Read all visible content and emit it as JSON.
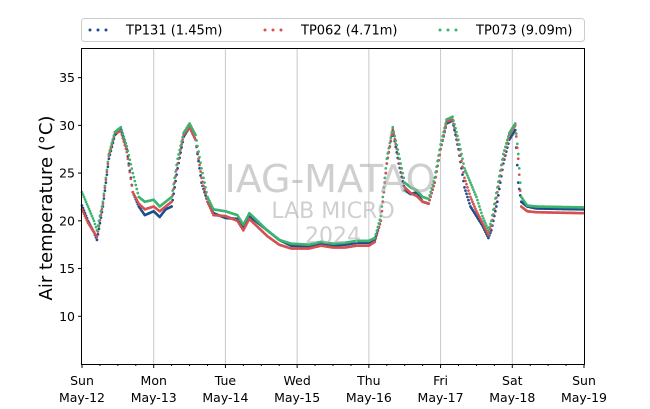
{
  "chart_data": {
    "type": "scatter",
    "ylabel": "Air temperature (°C)",
    "xlabel": "",
    "ylim": [
      5,
      38
    ],
    "yticks": [
      10,
      15,
      20,
      25,
      30,
      35
    ],
    "xlim": [
      "2024-05-12",
      "2024-05-19"
    ],
    "xticks": [
      {
        "day": "Sun",
        "date": "May-12"
      },
      {
        "day": "Mon",
        "date": "May-13"
      },
      {
        "day": "Tue",
        "date": "May-14"
      },
      {
        "day": "Wed",
        "date": "May-15"
      },
      {
        "day": "Thu",
        "date": "May-16"
      },
      {
        "day": "Fri",
        "date": "May-17"
      },
      {
        "day": "Sat",
        "date": "May-18"
      },
      {
        "day": "Sun",
        "date": "May-19"
      }
    ],
    "grid": "vertical",
    "legend_position": "top",
    "watermark": [
      "IAG-MATAO",
      "LAB MICRO",
      "2024"
    ],
    "series": [
      {
        "name": "TP131 (1.45m)",
        "color": "#1a4f8c",
        "points": [
          [
            "2024-05-12 00:00",
            21.6
          ],
          [
            "2024-05-12 02:00",
            20.0
          ],
          [
            "2024-05-12 04:00",
            18.8
          ],
          [
            "2024-05-12 05:00",
            18.0
          ],
          [
            "2024-05-12 07:00",
            21.5
          ],
          [
            "2024-05-12 09:00",
            26.5
          ],
          [
            "2024-05-12 11:00",
            29.0
          ],
          [
            "2024-05-12 13:00",
            29.6
          ],
          [
            "2024-05-12 15:00",
            27.5
          ],
          [
            "2024-05-12 17:00",
            23.0
          ],
          [
            "2024-05-12 19:00",
            21.5
          ],
          [
            "2024-05-12 21:00",
            20.6
          ],
          [
            "2024-05-13 00:00",
            21.0
          ],
          [
            "2024-05-13 02:00",
            20.4
          ],
          [
            "2024-05-13 04:00",
            21.2
          ],
          [
            "2024-05-13 06:00",
            21.5
          ],
          [
            "2024-05-13 08:00",
            25.5
          ],
          [
            "2024-05-13 10:00",
            28.8
          ],
          [
            "2024-05-13 12:00",
            29.8
          ],
          [
            "2024-05-13 14:00",
            28.5
          ],
          [
            "2024-05-13 16:00",
            24.0
          ],
          [
            "2024-05-13 18:00",
            22.0
          ],
          [
            "2024-05-13 20:00",
            20.8
          ],
          [
            "2024-05-14 00:00",
            20.3
          ],
          [
            "2024-05-14 04:00",
            20.2
          ],
          [
            "2024-05-14 06:00",
            19.3
          ],
          [
            "2024-05-14 08:00",
            20.5
          ],
          [
            "2024-05-14 10:00",
            20.0
          ],
          [
            "2024-05-14 14:00",
            19.0
          ],
          [
            "2024-05-14 18:00",
            18.0
          ],
          [
            "2024-05-14 22:00",
            17.4
          ],
          [
            "2024-05-15 04:00",
            17.3
          ],
          [
            "2024-05-15 08:00",
            17.6
          ],
          [
            "2024-05-15 12:00",
            17.4
          ],
          [
            "2024-05-15 16:00",
            17.5
          ],
          [
            "2024-05-15 20:00",
            17.7
          ],
          [
            "2024-05-16 00:00",
            17.7
          ],
          [
            "2024-05-16 02:00",
            18.0
          ],
          [
            "2024-05-16 04:00",
            20.0
          ],
          [
            "2024-05-16 06:00",
            26.0
          ],
          [
            "2024-05-16 08:00",
            29.5
          ],
          [
            "2024-05-16 10:00",
            26.0
          ],
          [
            "2024-05-16 12:00",
            23.2
          ],
          [
            "2024-05-16 14:00",
            22.8
          ],
          [
            "2024-05-16 16:00",
            23.0
          ],
          [
            "2024-05-16 18:00",
            22.0
          ],
          [
            "2024-05-16 20:00",
            21.8
          ],
          [
            "2024-05-16 22:00",
            24.0
          ],
          [
            "2024-05-17 00:00",
            27.5
          ],
          [
            "2024-05-17 02:00",
            30.2
          ],
          [
            "2024-05-17 04:00",
            30.5
          ],
          [
            "2024-05-17 06:00",
            27.5
          ],
          [
            "2024-05-17 08:00",
            23.5
          ],
          [
            "2024-05-17 10:00",
            21.5
          ],
          [
            "2024-05-17 12:00",
            20.5
          ],
          [
            "2024-05-17 14:00",
            19.5
          ],
          [
            "2024-05-17 16:00",
            18.2
          ],
          [
            "2024-05-17 17:00",
            19.0
          ],
          [
            "2024-05-17 19:00",
            22.0
          ],
          [
            "2024-05-17 21:00",
            26.0
          ],
          [
            "2024-05-17 23:00",
            28.5
          ],
          [
            "2024-05-18 01:00",
            29.5
          ],
          [
            "2024-05-18 02:00",
            24.0
          ],
          [
            "2024-05-18 03:00",
            22.0
          ],
          [
            "2024-05-18 05:00",
            21.5
          ],
          [
            "2024-05-18 08:00",
            21.3
          ],
          [
            "2024-05-19 00:00",
            21.2
          ]
        ]
      },
      {
        "name": "TP062 (4.71m)",
        "color": "#d6504f",
        "points": [
          [
            "2024-05-12 00:00",
            21.2
          ],
          [
            "2024-05-12 02:00",
            19.8
          ],
          [
            "2024-05-12 04:00",
            18.8
          ],
          [
            "2024-05-12 05:00",
            18.3
          ],
          [
            "2024-05-12 07:00",
            21.8
          ],
          [
            "2024-05-12 09:00",
            26.8
          ],
          [
            "2024-05-12 11:00",
            29.2
          ],
          [
            "2024-05-12 13:00",
            29.4
          ],
          [
            "2024-05-12 15:00",
            27.2
          ],
          [
            "2024-05-12 17:00",
            23.0
          ],
          [
            "2024-05-12 19:00",
            21.8
          ],
          [
            "2024-05-12 21:00",
            21.2
          ],
          [
            "2024-05-13 00:00",
            21.5
          ],
          [
            "2024-05-13 02:00",
            21.0
          ],
          [
            "2024-05-13 04:00",
            21.5
          ],
          [
            "2024-05-13 06:00",
            22.0
          ],
          [
            "2024-05-13 08:00",
            26.0
          ],
          [
            "2024-05-13 10:00",
            29.0
          ],
          [
            "2024-05-13 12:00",
            29.8
          ],
          [
            "2024-05-13 14:00",
            28.5
          ],
          [
            "2024-05-13 16:00",
            24.5
          ],
          [
            "2024-05-13 18:00",
            22.0
          ],
          [
            "2024-05-13 20:00",
            20.6
          ],
          [
            "2024-05-14 00:00",
            20.5
          ],
          [
            "2024-05-14 04:00",
            20.0
          ],
          [
            "2024-05-14 06:00",
            19.0
          ],
          [
            "2024-05-14 08:00",
            20.2
          ],
          [
            "2024-05-14 10:00",
            19.6
          ],
          [
            "2024-05-14 14:00",
            18.4
          ],
          [
            "2024-05-14 18:00",
            17.5
          ],
          [
            "2024-05-14 22:00",
            17.1
          ],
          [
            "2024-05-15 04:00",
            17.1
          ],
          [
            "2024-05-15 08:00",
            17.4
          ],
          [
            "2024-05-15 12:00",
            17.2
          ],
          [
            "2024-05-15 16:00",
            17.2
          ],
          [
            "2024-05-15 20:00",
            17.4
          ],
          [
            "2024-05-16 00:00",
            17.4
          ],
          [
            "2024-05-16 02:00",
            17.8
          ],
          [
            "2024-05-16 04:00",
            20.0
          ],
          [
            "2024-05-16 06:00",
            26.0
          ],
          [
            "2024-05-16 08:00",
            29.6
          ],
          [
            "2024-05-16 10:00",
            26.5
          ],
          [
            "2024-05-16 12:00",
            23.5
          ],
          [
            "2024-05-16 14:00",
            22.9
          ],
          [
            "2024-05-16 16:00",
            22.6
          ],
          [
            "2024-05-16 18:00",
            22.0
          ],
          [
            "2024-05-16 20:00",
            21.8
          ],
          [
            "2024-05-16 22:00",
            24.0
          ],
          [
            "2024-05-17 00:00",
            27.5
          ],
          [
            "2024-05-17 02:00",
            30.4
          ],
          [
            "2024-05-17 04:00",
            30.6
          ],
          [
            "2024-05-17 06:00",
            28.0
          ],
          [
            "2024-05-17 08:00",
            24.5
          ],
          [
            "2024-05-17 10:00",
            22.5
          ],
          [
            "2024-05-17 12:00",
            21.0
          ],
          [
            "2024-05-17 14:00",
            19.8
          ],
          [
            "2024-05-17 16:00",
            18.5
          ],
          [
            "2024-05-17 17:00",
            19.5
          ],
          [
            "2024-05-17 19:00",
            23.0
          ],
          [
            "2024-05-17 21:00",
            26.5
          ],
          [
            "2024-05-17 23:00",
            29.0
          ],
          [
            "2024-05-18 01:00",
            30.0
          ],
          [
            "2024-05-18 02:00",
            26.5
          ],
          [
            "2024-05-18 03:00",
            21.5
          ],
          [
            "2024-05-18 05:00",
            21.0
          ],
          [
            "2024-05-18 08:00",
            20.9
          ],
          [
            "2024-05-19 00:00",
            20.8
          ]
        ]
      },
      {
        "name": "TP073 (9.09m)",
        "color": "#3cb371",
        "points": [
          [
            "2024-05-12 00:00",
            23.0
          ],
          [
            "2024-05-12 02:00",
            21.5
          ],
          [
            "2024-05-12 04:00",
            20.0
          ],
          [
            "2024-05-12 05:00",
            19.0
          ],
          [
            "2024-05-12 07:00",
            22.0
          ],
          [
            "2024-05-12 09:00",
            27.0
          ],
          [
            "2024-05-12 11:00",
            29.3
          ],
          [
            "2024-05-12 13:00",
            29.8
          ],
          [
            "2024-05-12 15:00",
            27.8
          ],
          [
            "2024-05-12 17:00",
            25.0
          ],
          [
            "2024-05-12 19:00",
            22.5
          ],
          [
            "2024-05-12 21:00",
            22.0
          ],
          [
            "2024-05-13 00:00",
            22.2
          ],
          [
            "2024-05-13 02:00",
            21.5
          ],
          [
            "2024-05-13 04:00",
            22.0
          ],
          [
            "2024-05-13 06:00",
            22.5
          ],
          [
            "2024-05-13 08:00",
            26.5
          ],
          [
            "2024-05-13 10:00",
            29.2
          ],
          [
            "2024-05-13 12:00",
            30.2
          ],
          [
            "2024-05-13 14:00",
            29.0
          ],
          [
            "2024-05-13 16:00",
            25.5
          ],
          [
            "2024-05-13 18:00",
            22.5
          ],
          [
            "2024-05-13 20:00",
            21.2
          ],
          [
            "2024-05-14 00:00",
            21.0
          ],
          [
            "2024-05-14 04:00",
            20.6
          ],
          [
            "2024-05-14 06:00",
            19.6
          ],
          [
            "2024-05-14 08:00",
            20.8
          ],
          [
            "2024-05-14 10:00",
            20.2
          ],
          [
            "2024-05-14 14:00",
            19.0
          ],
          [
            "2024-05-14 18:00",
            18.0
          ],
          [
            "2024-05-14 22:00",
            17.6
          ],
          [
            "2024-05-15 04:00",
            17.5
          ],
          [
            "2024-05-15 08:00",
            17.8
          ],
          [
            "2024-05-15 12:00",
            17.6
          ],
          [
            "2024-05-15 16:00",
            17.7
          ],
          [
            "2024-05-15 20:00",
            17.9
          ],
          [
            "2024-05-16 00:00",
            17.9
          ],
          [
            "2024-05-16 02:00",
            18.2
          ],
          [
            "2024-05-16 04:00",
            20.5
          ],
          [
            "2024-05-16 06:00",
            26.5
          ],
          [
            "2024-05-16 08:00",
            29.8
          ],
          [
            "2024-05-16 10:00",
            27.0
          ],
          [
            "2024-05-16 12:00",
            24.0
          ],
          [
            "2024-05-16 14:00",
            23.5
          ],
          [
            "2024-05-16 16:00",
            23.2
          ],
          [
            "2024-05-16 18:00",
            22.5
          ],
          [
            "2024-05-16 20:00",
            22.3
          ],
          [
            "2024-05-16 22:00",
            24.5
          ],
          [
            "2024-05-17 00:00",
            28.0
          ],
          [
            "2024-05-17 02:00",
            30.6
          ],
          [
            "2024-05-17 04:00",
            30.9
          ],
          [
            "2024-05-17 06:00",
            28.5
          ],
          [
            "2024-05-17 08:00",
            25.5
          ],
          [
            "2024-05-17 10:00",
            24.0
          ],
          [
            "2024-05-17 12:00",
            22.5
          ],
          [
            "2024-05-17 14:00",
            20.5
          ],
          [
            "2024-05-17 16:00",
            19.0
          ],
          [
            "2024-05-17 17:00",
            20.0
          ],
          [
            "2024-05-17 19:00",
            23.5
          ],
          [
            "2024-05-17 21:00",
            27.0
          ],
          [
            "2024-05-17 23:00",
            29.2
          ],
          [
            "2024-05-18 01:00",
            30.2
          ],
          [
            "2024-05-18 02:00",
            27.0
          ],
          [
            "2024-05-18 03:00",
            22.5
          ],
          [
            "2024-05-18 05:00",
            21.6
          ],
          [
            "2024-05-18 08:00",
            21.5
          ],
          [
            "2024-05-19 00:00",
            21.4
          ]
        ]
      }
    ]
  }
}
